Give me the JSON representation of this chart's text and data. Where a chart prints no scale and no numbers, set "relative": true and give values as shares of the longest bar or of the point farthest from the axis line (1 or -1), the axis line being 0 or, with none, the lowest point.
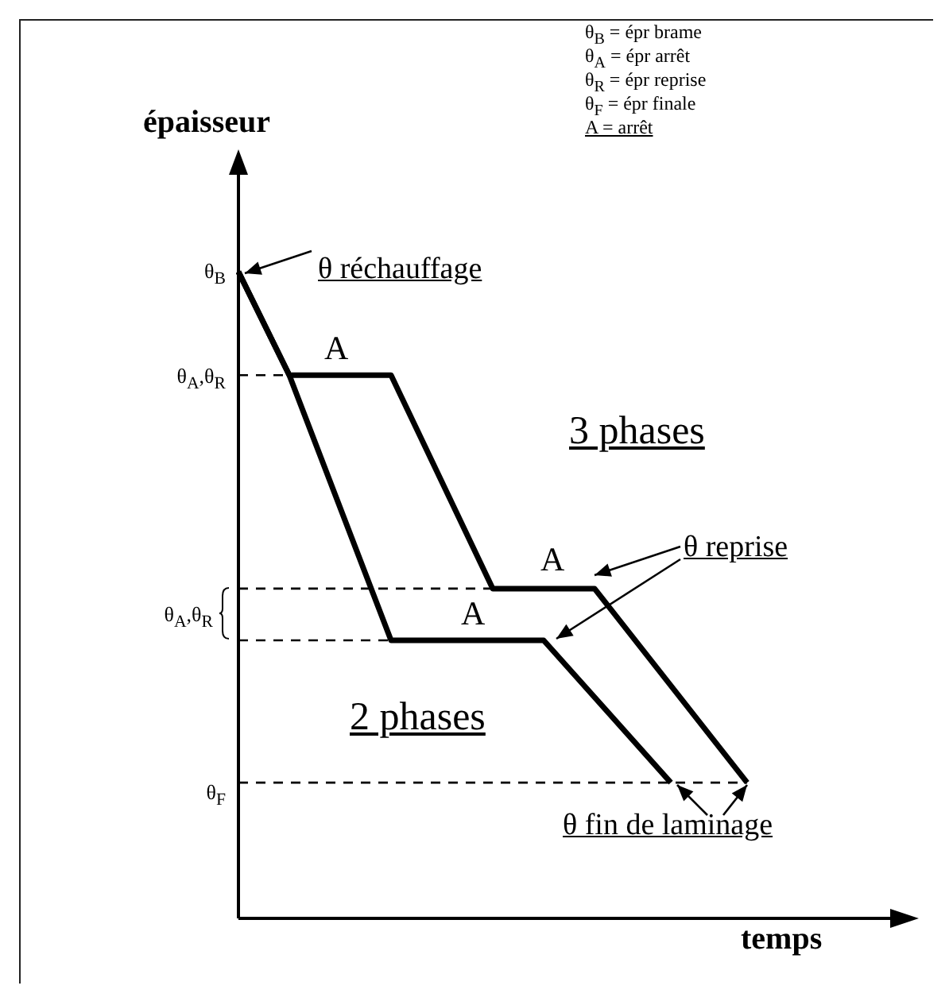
{
  "chart_data": {
    "type": "line",
    "relative": true,
    "xlabel": "temps",
    "ylabel": "épaisseur",
    "marker": "none",
    "categories": [
      null,
      null,
      null,
      null,
      null,
      null,
      null,
      null,
      null,
      null,
      null,
      null,
      null,
      null,
      null,
      null,
      null,
      null,
      null,
      null,
      null,
      null,
      null,
      null,
      null,
      null
    ],
    "series": [
      {
        "color": "#000000",
        "values": [
          1,
          null,
          0.84,
          null,
          null,
          null,
          0.84,
          null,
          null,
          null,
          0.51,
          null,
          null,
          null,
          0.51,
          null,
          null,
          null,
          null,
          null,
          0.21,
          null,
          null,
          null,
          null,
          null
        ]
      },
      {
        "color": "#000000",
        "values": [
          1,
          null,
          0.84,
          null,
          null,
          null,
          0.43,
          null,
          null,
          null,
          null,
          null,
          0.43,
          null,
          null,
          null,
          null,
          0.21,
          null,
          null,
          null,
          null,
          null,
          null,
          null,
          null
        ]
      }
    ],
    "ref_lines": [
      {
        "axis": "y",
        "value": 0.84,
        "line_style": "dashed"
      },
      {
        "axis": "y",
        "value": 0.51,
        "line_style": "dashed"
      },
      {
        "axis": "y",
        "value": 0.43,
        "line_style": "dashed"
      },
      {
        "axis": "y",
        "value": 0.21,
        "line_style": "dashed"
      }
    ],
    "annotations": [
      "θ$_{B}$ = épr brame",
      "θ$_{A}$ = épr arrêt",
      "θ$_{R}$ = épr reprise",
      "θ$_{F}$ = épr finale",
      "A = arrêt",
      "θ$_{B}$",
      "θ$_{A}$,θ$_{R}$",
      "θ$_{A}$,θ$_{R}$",
      "θ$_{F}$",
      "θ réchauffage",
      "A",
      "3 phases",
      "θ reprise",
      "A",
      "A",
      "2 phases",
      "θ fin de laminage"
    ]
  }
}
